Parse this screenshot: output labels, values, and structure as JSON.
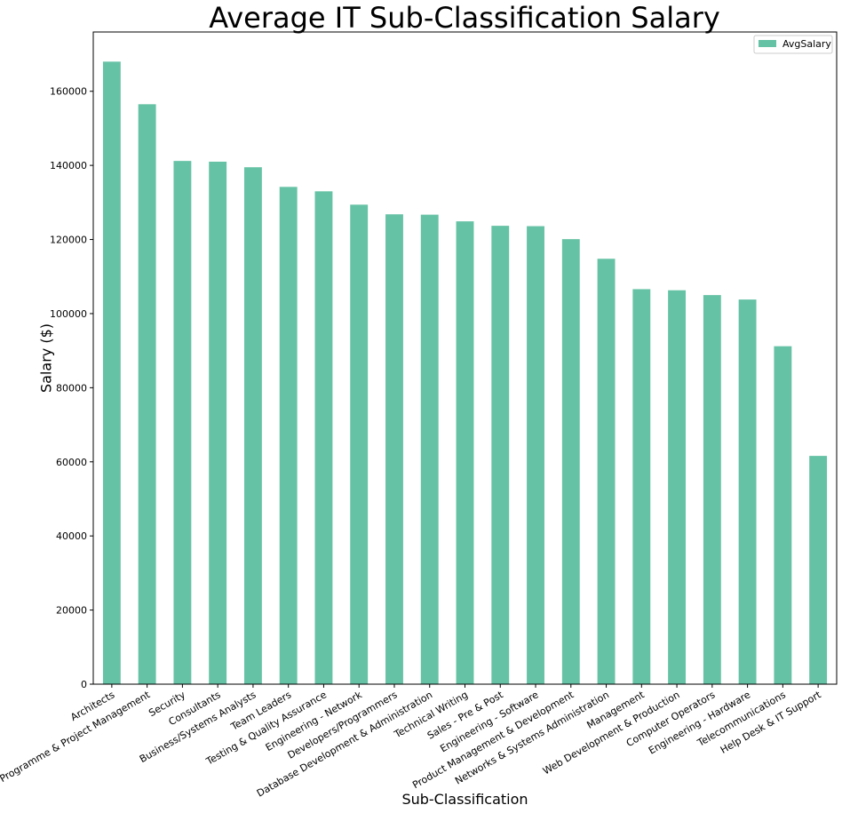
{
  "chart_data": {
    "type": "bar",
    "title": "Average IT Sub-Classification Salary",
    "xlabel": "Sub-Classification",
    "ylabel": "Salary ($)",
    "ylim": [
      0,
      176000
    ],
    "yticks": [
      0,
      20000,
      40000,
      60000,
      80000,
      100000,
      120000,
      140000,
      160000
    ],
    "grid": false,
    "legend_position": "top-right",
    "bar_color": "#66c2a5",
    "categories": [
      "Architects",
      "Programme & Project Management",
      "Security",
      "Consultants",
      "Business/Systems Analysts",
      "Team Leaders",
      "Testing & Quality Assurance",
      "Engineering - Network",
      "Developers/Programmers",
      "Database Development & Administration",
      "Technical Writing",
      "Sales - Pre & Post",
      "Engineering - Software",
      "Product Management & Development",
      "Networks & Systems Administration",
      "Management",
      "Web Development & Production",
      "Computer Operators",
      "Engineering - Hardware",
      "Telecommunications",
      "Help Desk & IT Support"
    ],
    "series": [
      {
        "name": "AvgSalary",
        "values": [
          168000,
          156500,
          141200,
          141000,
          139500,
          134200,
          133000,
          129400,
          126800,
          126700,
          124900,
          123700,
          123600,
          120100,
          114800,
          106600,
          106300,
          105000,
          103800,
          91200,
          61600
        ]
      }
    ]
  }
}
